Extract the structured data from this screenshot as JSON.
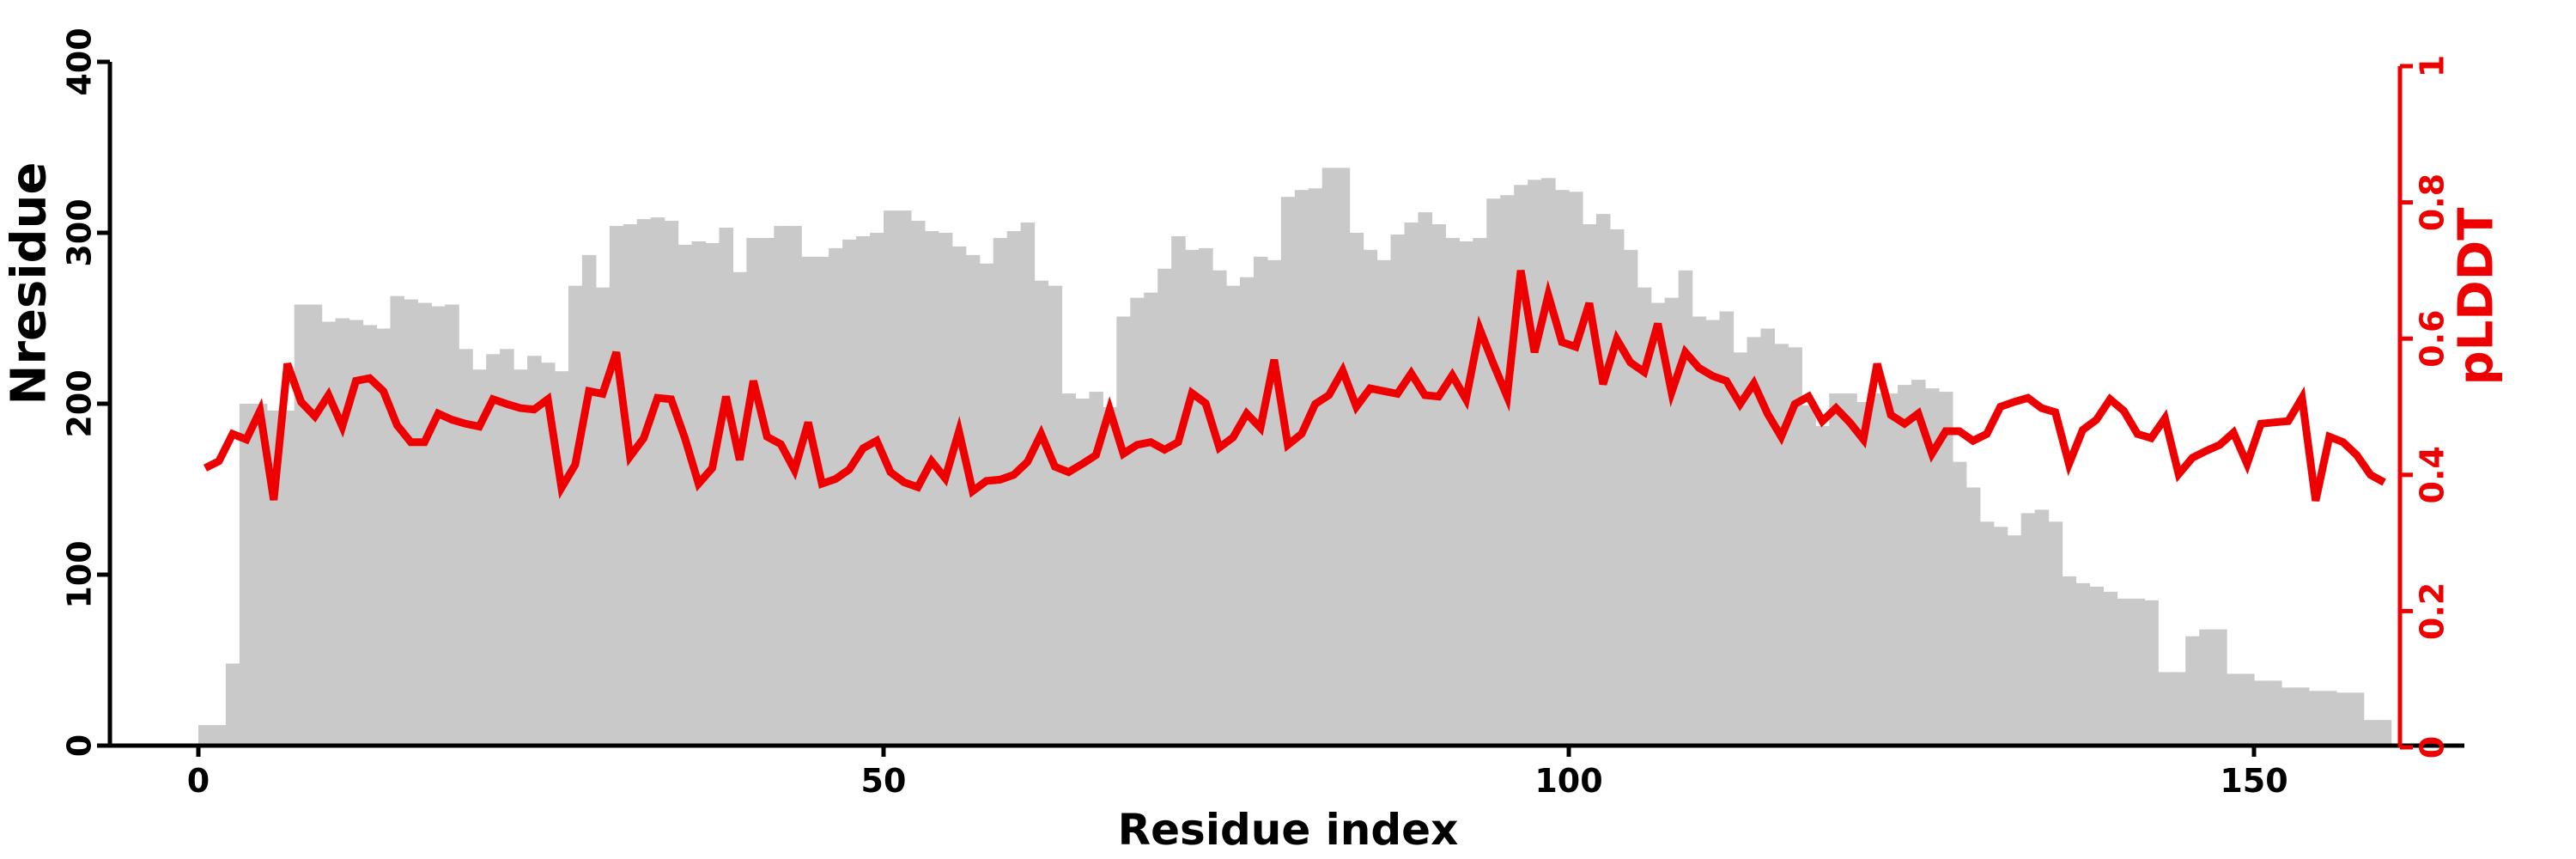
{
  "figure": {
    "background": "#ffffff"
  },
  "chart_data": {
    "type": "bar",
    "subtype": "dual-axis bar + line",
    "title": "",
    "xlabel": "Residue index",
    "ylabel_left": "Nresidue",
    "ylabel_right": "pLDDT",
    "grid": false,
    "legend": null,
    "xlim": [
      -6.5,
      165.4
    ],
    "ylim_left": [
      0,
      400
    ],
    "ylim_right": [
      0,
      1
    ],
    "x_tick_values": [
      0,
      50,
      100,
      150
    ],
    "x_tick_labels": [
      "0",
      "50",
      "100",
      "150"
    ],
    "y_left_tick_values": [
      0,
      100,
      200,
      300,
      400
    ],
    "y_left_tick_labels": [
      "0",
      "100",
      "200",
      "300",
      "400"
    ],
    "y_right_tick_values": [
      0,
      0.2,
      0.4,
      0.6,
      0.8,
      1
    ],
    "y_right_tick_labels": [
      "0",
      "0.2",
      "0.4",
      "0.6",
      "0.8",
      "1"
    ],
    "bar_color": "#c9c9c9",
    "line_color": "#ee0000",
    "axis_color_left": "#000000",
    "axis_color_right": "#ee0000",
    "x_start_index": 0,
    "series": [
      {
        "name": "Nresidue",
        "type": "bar",
        "y_axis": "left",
        "values": [
          12,
          12,
          48,
          200,
          200,
          196,
          196,
          258,
          258,
          248,
          250,
          249,
          246,
          244,
          263,
          261,
          259,
          257,
          258,
          232,
          220,
          229,
          232,
          220,
          228,
          224,
          219,
          269,
          287,
          268,
          304,
          305,
          308,
          309,
          307,
          293,
          295,
          294,
          303,
          277,
          297,
          297,
          304,
          304,
          286,
          286,
          291,
          296,
          298,
          300,
          313,
          313,
          307,
          301,
          300,
          292,
          287,
          282,
          297,
          301,
          306,
          272,
          269,
          206,
          203,
          207,
          198,
          251,
          262,
          265,
          279,
          298,
          290,
          291,
          278,
          269,
          274,
          286,
          284,
          321,
          325,
          326,
          338,
          338,
          300,
          290,
          284,
          299,
          306,
          312,
          305,
          297,
          295,
          297,
          320,
          322,
          328,
          331,
          332,
          325,
          324,
          305,
          311,
          302,
          290,
          268,
          259,
          262,
          278,
          251,
          249,
          254,
          230,
          239,
          244,
          235,
          233,
          199,
          187,
          206,
          206,
          201,
          206,
          206,
          211,
          214,
          209,
          207,
          166,
          151,
          131,
          128,
          123,
          136,
          138,
          131,
          99,
          95,
          93,
          90,
          86,
          86,
          85,
          43,
          43,
          64,
          68,
          68,
          42,
          42,
          38,
          38,
          34,
          34,
          32,
          32,
          31,
          31,
          15,
          15
        ]
      },
      {
        "name": "pLDDT",
        "type": "line",
        "y_axis": "right",
        "values": [
          0.41,
          0.42,
          0.46,
          0.452,
          0.494,
          0.363,
          0.563,
          0.507,
          0.486,
          0.517,
          0.471,
          0.538,
          0.542,
          0.523,
          0.473,
          0.448,
          0.448,
          0.49,
          0.481,
          0.475,
          0.471,
          0.511,
          0.504,
          0.498,
          0.496,
          0.511,
          0.381,
          0.415,
          0.523,
          0.519,
          0.58,
          0.427,
          0.454,
          0.513,
          0.511,
          0.454,
          0.387,
          0.41,
          0.515,
          0.422,
          0.538,
          0.456,
          0.445,
          0.407,
          0.477,
          0.387,
          0.394,
          0.408,
          0.439,
          0.45,
          0.404,
          0.389,
          0.382,
          0.42,
          0.395,
          0.464,
          0.376,
          0.391,
          0.393,
          0.4,
          0.419,
          0.46,
          0.412,
          0.404,
          0.416,
          0.429,
          0.496,
          0.431,
          0.444,
          0.448,
          0.437,
          0.448,
          0.52,
          0.505,
          0.44,
          0.455,
          0.49,
          0.469,
          0.569,
          0.444,
          0.46,
          0.504,
          0.517,
          0.553,
          0.5,
          0.527,
          0.523,
          0.519,
          0.549,
          0.517,
          0.515,
          0.546,
          0.511,
          0.614,
          0.563,
          0.515,
          0.7,
          0.58,
          0.664,
          0.595,
          0.588,
          0.652,
          0.533,
          0.599,
          0.565,
          0.551,
          0.622,
          0.521,
          0.58,
          0.557,
          0.545,
          0.538,
          0.504,
          0.534,
          0.49,
          0.456,
          0.504,
          0.515,
          0.479,
          0.498,
          0.477,
          0.452,
          0.563,
          0.488,
          0.475,
          0.49,
          0.431,
          0.464,
          0.464,
          0.45,
          0.46,
          0.5,
          0.507,
          0.513,
          0.498,
          0.492,
          0.416,
          0.466,
          0.481,
          0.511,
          0.494,
          0.46,
          0.454,
          0.483,
          0.401,
          0.425,
          0.435,
          0.444,
          0.462,
          0.416,
          0.475,
          0.477,
          0.479,
          0.513,
          0.362,
          0.456,
          0.448,
          0.429,
          0.4,
          0.389
        ]
      }
    ]
  }
}
